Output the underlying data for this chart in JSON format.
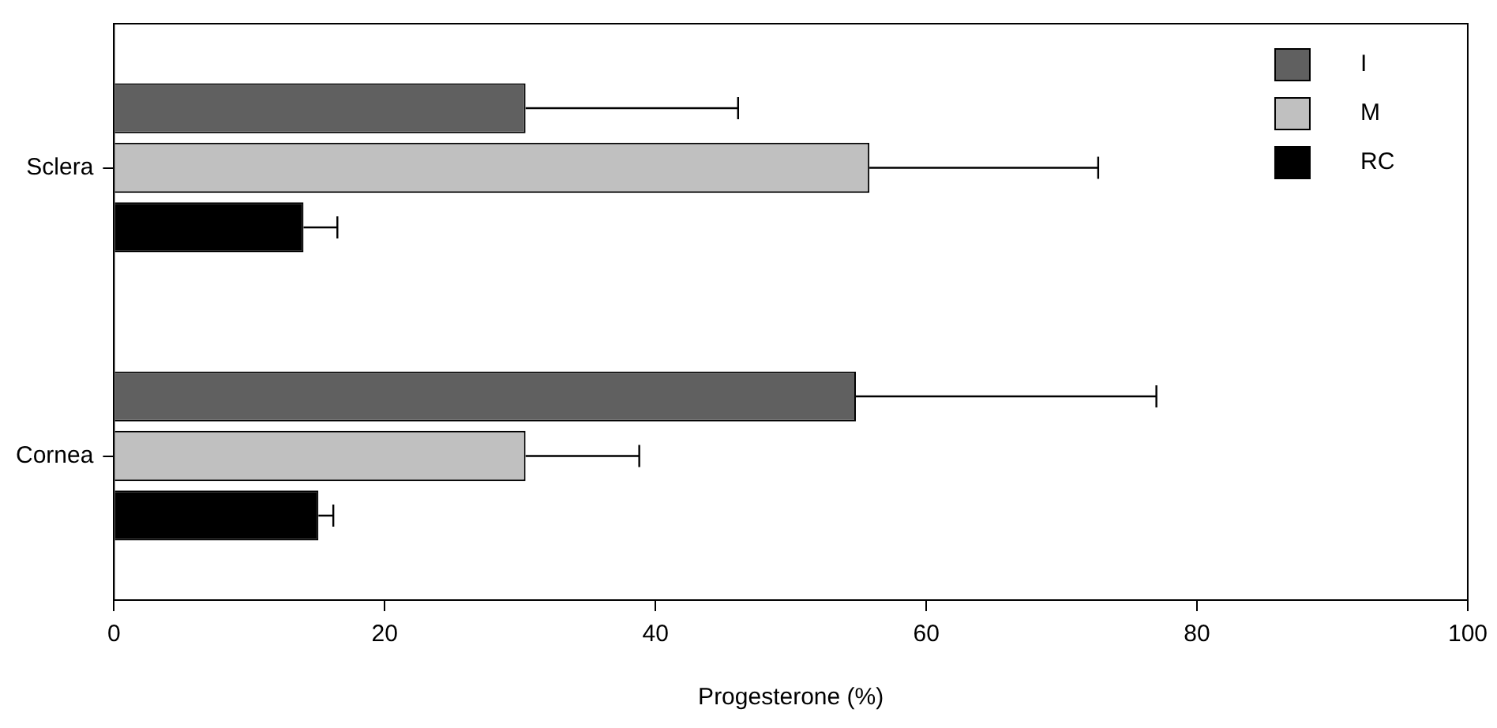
{
  "chart_data": {
    "type": "bar",
    "orientation": "horizontal",
    "xlabel": "Progesterone (%)",
    "categories": [
      "Sclera",
      "Cornea"
    ],
    "series": [
      {
        "name": "I",
        "color": "#606060",
        "values": [
          30.4,
          54.8
        ],
        "errors": [
          [
            30.4,
            46.1
          ],
          [
            54.8,
            77.0
          ]
        ]
      },
      {
        "name": "M",
        "color": "#c0c0c0",
        "values": [
          55.8,
          30.4
        ],
        "errors": [
          [
            55.8,
            72.7
          ],
          [
            30.4,
            38.8
          ]
        ]
      },
      {
        "name": "RC",
        "color": "#000000",
        "values": [
          14.0,
          15.1
        ],
        "errors": [
          [
            14.0,
            16.5
          ],
          [
            15.1,
            16.2
          ]
        ]
      }
    ],
    "xlim": [
      0,
      100
    ],
    "xticks": [
      0,
      20,
      40,
      60,
      80,
      100
    ],
    "grid": false,
    "legend": "top right"
  }
}
